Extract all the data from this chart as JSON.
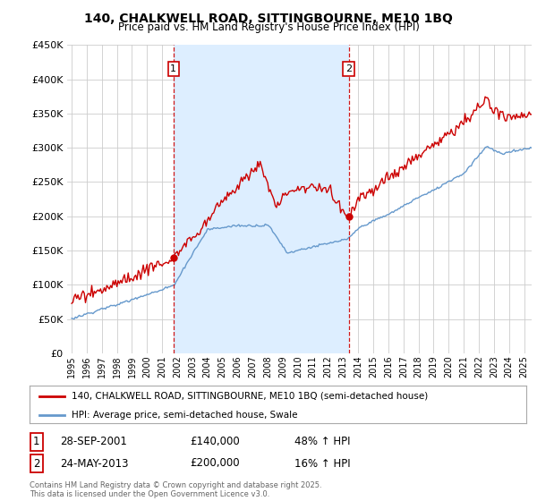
{
  "title": "140, CHALKWELL ROAD, SITTINGBOURNE, ME10 1BQ",
  "subtitle": "Price paid vs. HM Land Registry's House Price Index (HPI)",
  "background_color": "#ffffff",
  "plot_bg_color": "#ffffff",
  "grid_color": "#cccccc",
  "shade_color": "#ddeeff",
  "ylim": [
    0,
    450000
  ],
  "yticks": [
    0,
    50000,
    100000,
    150000,
    200000,
    250000,
    300000,
    350000,
    400000,
    450000
  ],
  "sale1_year": 2001.75,
  "sale1_price": 140000,
  "sale1_label": "1",
  "sale1_date": "28-SEP-2001",
  "sale1_hpi_pct": "48% ↑ HPI",
  "sale2_year": 2013.38,
  "sale2_price": 200000,
  "sale2_label": "2",
  "sale2_date": "24-MAY-2013",
  "sale2_hpi_pct": "16% ↑ HPI",
  "red_color": "#cc0000",
  "blue_color": "#6699cc",
  "vline_color": "#cc0000",
  "legend_line1": "140, CHALKWELL ROAD, SITTINGBOURNE, ME10 1BQ (semi-detached house)",
  "legend_line2": "HPI: Average price, semi-detached house, Swale",
  "footer": "Contains HM Land Registry data © Crown copyright and database right 2025.\nThis data is licensed under the Open Government Licence v3.0.",
  "xlim_start": 1994.7,
  "xlim_end": 2025.5
}
